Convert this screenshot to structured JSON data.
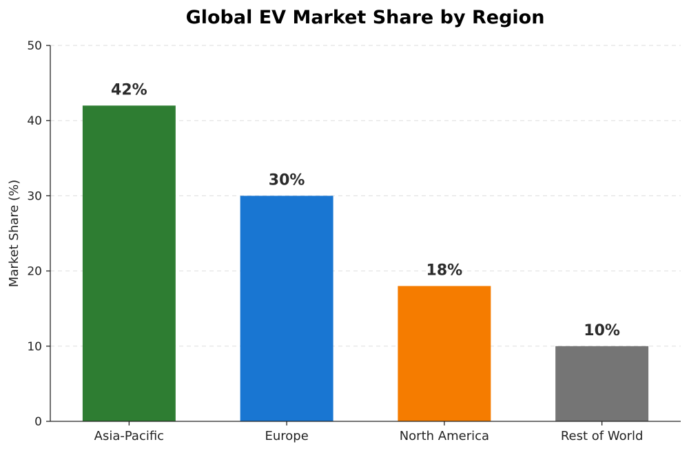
{
  "chart_data": {
    "type": "bar",
    "title": "Global EV Market Share by Region",
    "xlabel": "",
    "ylabel": "Market Share (%)",
    "ylim": [
      0,
      50
    ],
    "yticks": [
      0,
      10,
      20,
      30,
      40,
      50
    ],
    "grid": "horizontal-dashed",
    "categories": [
      "Asia-Pacific",
      "Europe",
      "North America",
      "Rest of World"
    ],
    "values": [
      42,
      30,
      18,
      10
    ],
    "value_labels": [
      "42%",
      "30%",
      "18%",
      "10%"
    ],
    "colors": [
      "#2e7d32",
      "#1976d2",
      "#f57c00",
      "#757575"
    ]
  }
}
